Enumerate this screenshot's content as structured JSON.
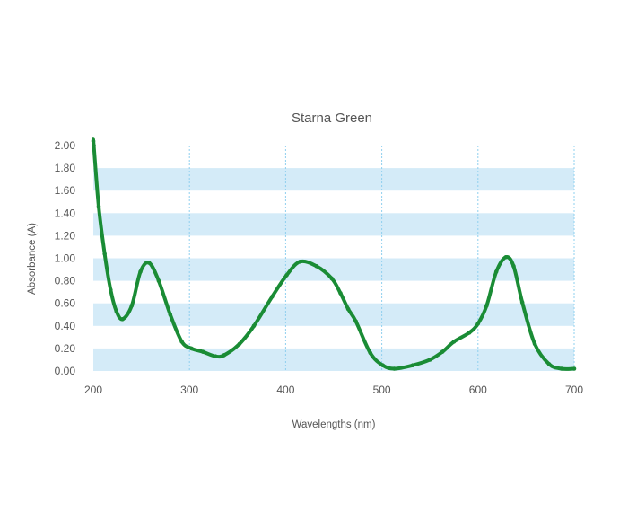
{
  "chart_data": {
    "type": "line",
    "title": "Starna Green",
    "xlabel": "Wavelengths (nm)",
    "ylabel": "Absorbance (A)",
    "xlim": [
      200,
      700
    ],
    "ylim": [
      0,
      2
    ],
    "x_ticks": [
      "200",
      "300",
      "400",
      "500",
      "600",
      "700"
    ],
    "y_ticks": [
      "0.00",
      "0.20",
      "0.40",
      "0.60",
      "0.80",
      "1.00",
      "1.20",
      "1.40",
      "1.60",
      "1.80",
      "2.00"
    ],
    "grid": {
      "vertical": "dotted",
      "horizontal": "alternating bands"
    },
    "colors": {
      "line": "#1a8c35",
      "band": "#d4ebf8",
      "grid": "#8fd0ef"
    },
    "series": [
      {
        "x": [
          200,
          200.5,
          205.6,
          211.8,
          218,
          224,
          230.5,
          240,
          249,
          258,
          268,
          280,
          292,
          302,
          314,
          327,
          336,
          352,
          367,
          386,
          401,
          415,
          432,
          448,
          457,
          465,
          473,
          488,
          501,
          513,
          532,
          550,
          563,
          575,
          591,
          600,
          609,
          619,
          629,
          637,
          646,
          659,
          674,
          687,
          700
        ],
        "y": [
          2.04,
          2.0,
          1.46,
          1.04,
          0.72,
          0.53,
          0.46,
          0.58,
          0.88,
          0.96,
          0.8,
          0.5,
          0.26,
          0.2,
          0.17,
          0.13,
          0.14,
          0.24,
          0.4,
          0.66,
          0.85,
          0.97,
          0.93,
          0.82,
          0.69,
          0.55,
          0.44,
          0.16,
          0.05,
          0.02,
          0.05,
          0.1,
          0.17,
          0.26,
          0.34,
          0.42,
          0.58,
          0.88,
          1.01,
          0.93,
          0.61,
          0.24,
          0.06,
          0.02,
          0.02
        ]
      }
    ]
  }
}
